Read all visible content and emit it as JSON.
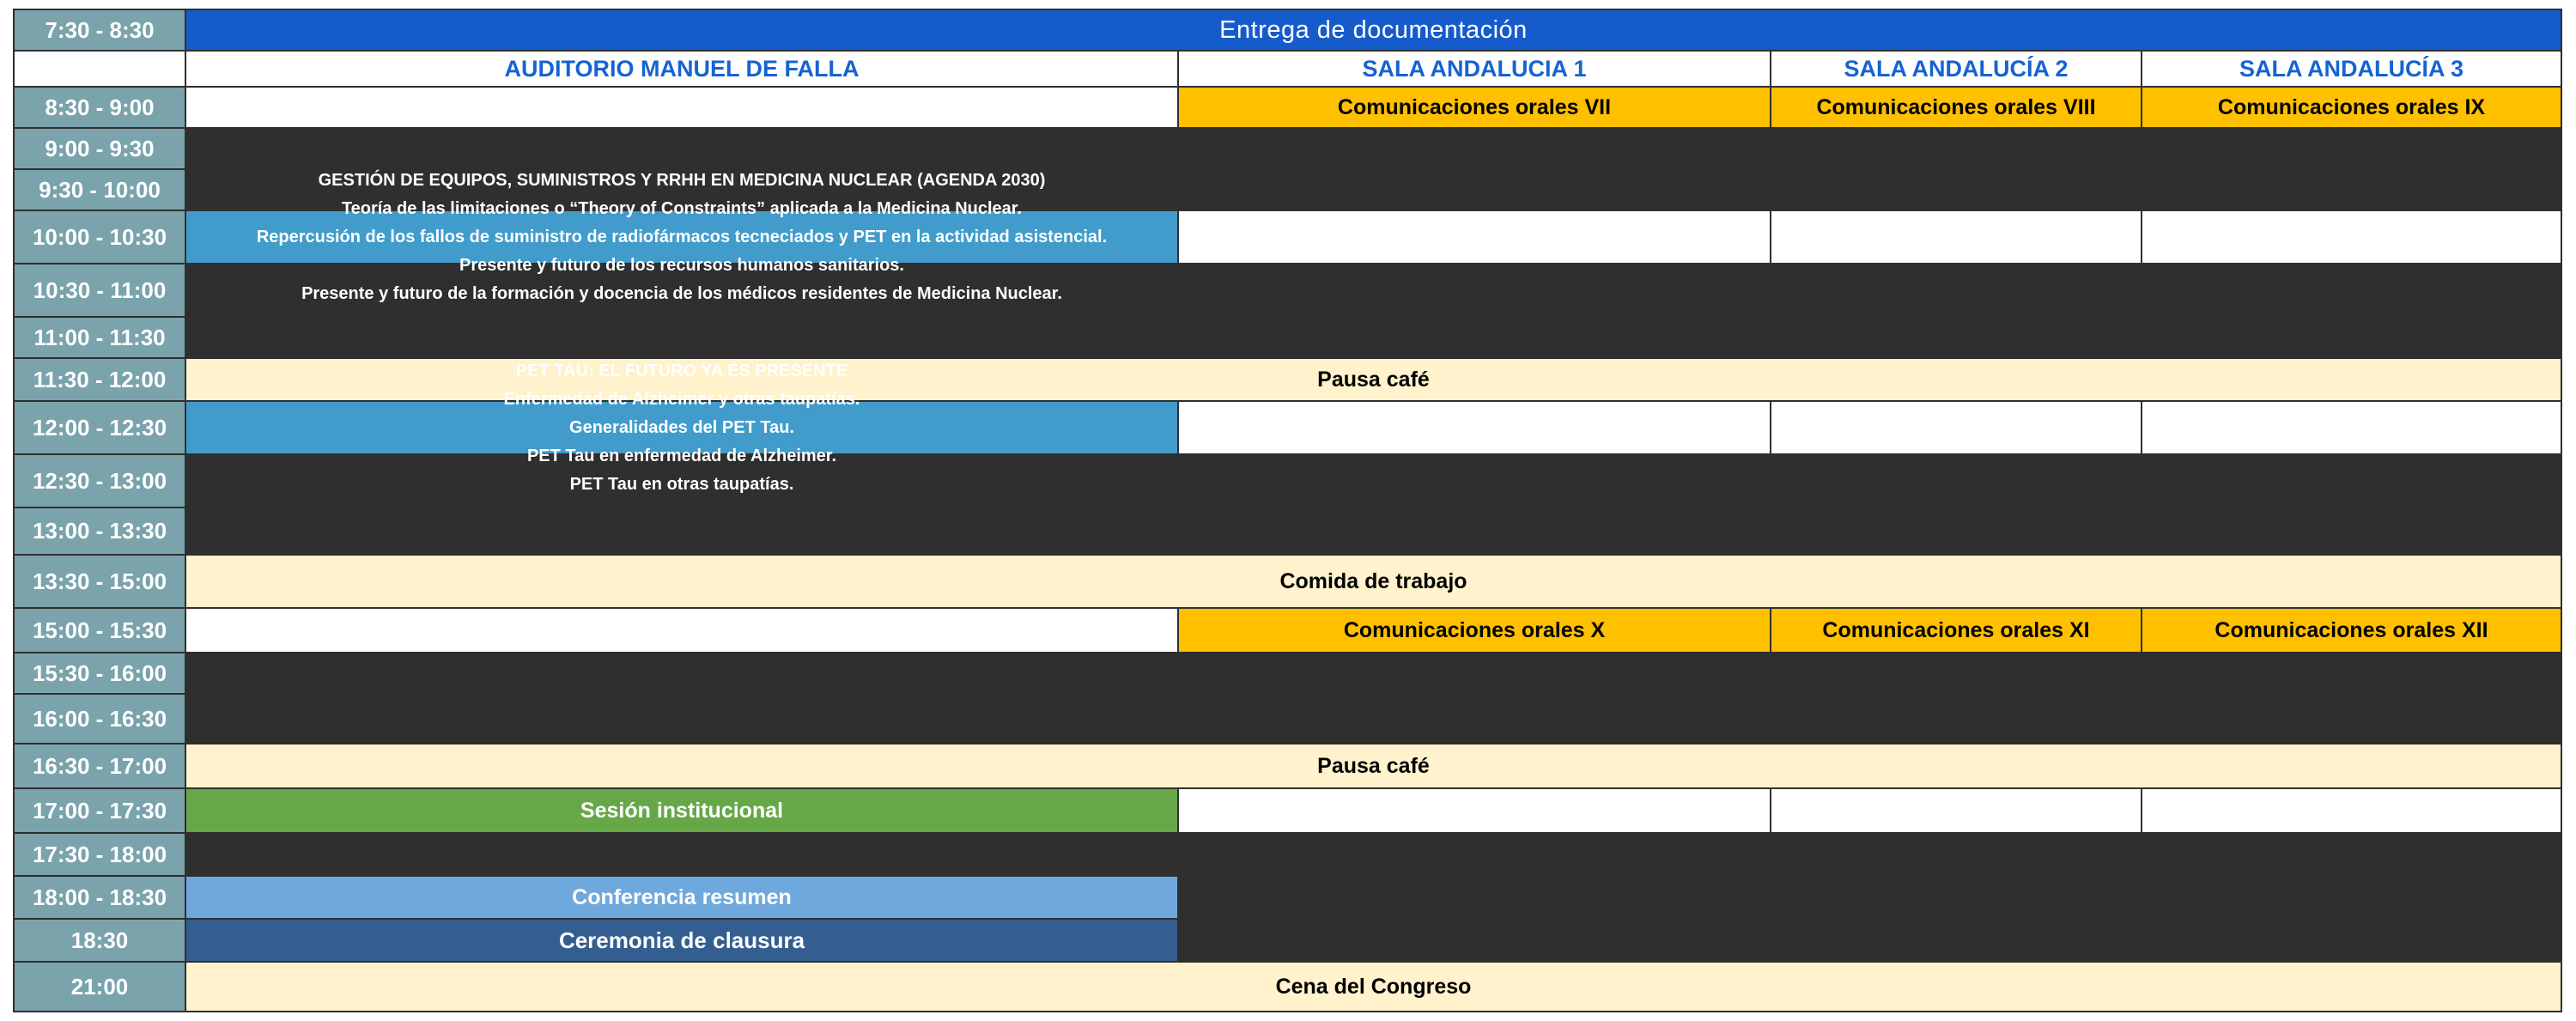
{
  "banner": {
    "label": "Entrega de documentación"
  },
  "columns": {
    "auditorio": "AUDITORIO MANUEL DE FALLA",
    "sala1": "SALA ANDALUCIA 1",
    "sala2": "SALA ANDALUCÍA 2",
    "sala3": "SALA ANDALUCÍA 3"
  },
  "times": {
    "t1": "7:30 - 8:30",
    "t2": "8:30 - 9:00",
    "t3": "9:00 - 9:30",
    "t4": "9:30 - 10:00",
    "t5": "10:00 - 10:30",
    "t6": "10:30 - 11:00",
    "t7": "11:00 - 11:30",
    "t8": "11:30 - 12:00",
    "t9": "12:00 - 12:30",
    "t10": "12:30 - 13:00",
    "t11": "13:00 - 13:30",
    "t12": "13:30 - 15:00",
    "t13": "15:00 - 15:30",
    "t14": "15:30 - 16:00",
    "t15": "16:00 - 16:30",
    "t16": "16:30 - 17:00",
    "t17": "17:00 - 17:30",
    "t18": "17:30 - 18:00",
    "t19": "18:00 - 18:30",
    "t20": "18:30",
    "t21": "21:00"
  },
  "sessions": {
    "orales7": "Comunicaciones orales VII",
    "orales8": "Comunicaciones orales VIII",
    "orales9": "Comunicaciones orales IX",
    "orales10": "Comunicaciones orales X",
    "orales11": "Comunicaciones orales XI",
    "orales12": "Comunicaciones orales XII",
    "gestion": {
      "title": "GESTIÓN DE EQUIPOS, SUMINISTROS Y RRHH EN MEDICINA NUCLEAR (AGENDA 2030)",
      "line1": "Teoría de las limitaciones o “Theory of Constraints” aplicada a la Medicina Nuclear.",
      "line2": "Repercusión de los fallos de suministro de radiofármacos tecneciados y PET en la actividad asistencial.",
      "line3": "Presente y futuro de los recursos humanos sanitarios.",
      "line4": "Presente y futuro de la formación y docencia de los médicos residentes de Medicina Nuclear."
    },
    "pettau": {
      "title": "PET TAU: EL FUTURO YA ES PRESENTE",
      "line1": "Enfermedad de Alzheimer y otras taupatías.",
      "line2": "Generalidades del PET Tau.",
      "line3": "PET Tau en enfermedad de Alzheimer.",
      "line4": "PET Tau en otras taupatías."
    },
    "pausa1": "Pausa café",
    "comida": "Comida de trabajo",
    "pausa2": "Pausa café",
    "sesion_institucional": "Sesión institucional",
    "conferencia_resumen": "Conferencia resumen",
    "ceremonia_clausura": "Ceremonia de clausura",
    "cena": "Cena del Congreso"
  },
  "colors": {
    "time_column": "#7aa3ac",
    "banner_blue": "#165bcb",
    "header_text_blue": "#1663d2",
    "session_yellow": "#ffc000",
    "session_blue": "#419ccb",
    "break_cream": "#fff2cc",
    "session_green": "#66a848",
    "session_light_blue": "#6fa8dc",
    "session_navy": "#345e90"
  }
}
